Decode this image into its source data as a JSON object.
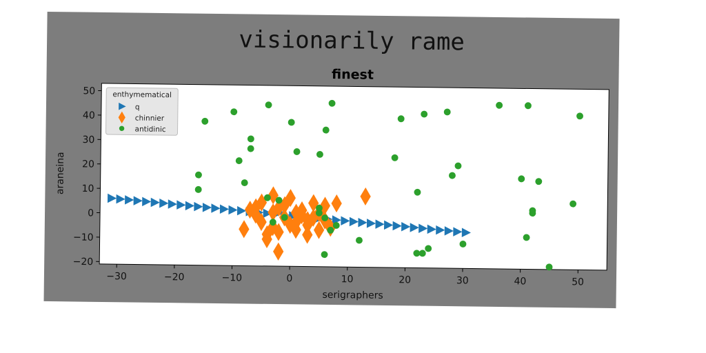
{
  "figure": {
    "suptitle": "visionarily rame"
  },
  "chart_data": {
    "type": "scatter",
    "title": "finest",
    "xlabel": "serigraphers",
    "ylabel": "araneina",
    "xlim": [
      -33,
      55
    ],
    "ylim": [
      -21,
      53
    ],
    "x_ticks": [
      -30,
      -20,
      -10,
      0,
      10,
      20,
      30,
      40,
      50
    ],
    "y_ticks": [
      -20,
      -10,
      0,
      10,
      20,
      30,
      40,
      50
    ],
    "x_tick_labels": [
      "−30",
      "−20",
      "−10",
      "0",
      "10",
      "20",
      "30",
      "40",
      "50"
    ],
    "y_tick_labels": [
      "−20",
      "−10",
      "0",
      "10",
      "20",
      "30",
      "40",
      "50"
    ],
    "grid": false,
    "legend": {
      "title": "enthymematical",
      "placement": "top-left"
    },
    "series": [
      {
        "name": "q",
        "marker": "triangle-right",
        "color": "#1f77b4",
        "points": [
          [
            -31,
            6.0
          ],
          [
            -29.5,
            5.7
          ],
          [
            -28,
            5.4
          ],
          [
            -26.5,
            5.1
          ],
          [
            -25,
            4.8
          ],
          [
            -23.5,
            4.5
          ],
          [
            -22,
            4.2
          ],
          [
            -20.5,
            3.9
          ],
          [
            -19,
            3.6
          ],
          [
            -17.5,
            3.3
          ],
          [
            -16,
            3.0
          ],
          [
            -14.5,
            2.7
          ],
          [
            -13,
            2.4
          ],
          [
            -11.5,
            2.1
          ],
          [
            -10,
            1.8
          ],
          [
            -8.5,
            1.5
          ],
          [
            -7,
            1.2
          ],
          [
            -5.5,
            0.9
          ],
          [
            -4,
            0.6
          ],
          [
            -2.5,
            0.3
          ],
          [
            -1,
            0.0
          ],
          [
            0.5,
            -0.3
          ],
          [
            2,
            -0.6
          ],
          [
            3.5,
            -0.9
          ],
          [
            5,
            -1.2
          ],
          [
            6.5,
            -1.5
          ],
          [
            8,
            -1.8
          ],
          [
            9.5,
            -2.1
          ],
          [
            11,
            -2.4
          ],
          [
            12.5,
            -2.7
          ],
          [
            14,
            -3.0
          ],
          [
            15.5,
            -3.3
          ],
          [
            17,
            -3.6
          ],
          [
            18.5,
            -3.9
          ],
          [
            20,
            -4.2
          ],
          [
            21.5,
            -4.5
          ],
          [
            23,
            -4.8
          ],
          [
            24.5,
            -5.1
          ],
          [
            26,
            -5.4
          ],
          [
            27.5,
            -5.7
          ],
          [
            29,
            -6.0
          ],
          [
            30.5,
            -6.3
          ]
        ]
      },
      {
        "name": "chinnier",
        "marker": "thin-diamond",
        "color": "#ff7f0e",
        "points": [
          [
            -7,
            2
          ],
          [
            -6,
            0
          ],
          [
            -5,
            -3
          ],
          [
            -4,
            -8
          ],
          [
            -3,
            -5
          ],
          [
            -2,
            3
          ],
          [
            -1,
            -1
          ],
          [
            0,
            7
          ],
          [
            1,
            -3
          ],
          [
            2,
            2
          ],
          [
            3,
            -2
          ],
          [
            4,
            5
          ],
          [
            5,
            -6
          ],
          [
            -5,
            5
          ],
          [
            -3,
            1
          ],
          [
            -1,
            4
          ],
          [
            1,
            -6
          ],
          [
            3,
            -8
          ],
          [
            5,
            1
          ],
          [
            6,
            4
          ],
          [
            7,
            -5
          ],
          [
            8,
            5
          ],
          [
            13,
            8
          ],
          [
            -2,
            -15
          ],
          [
            -8,
            -6
          ],
          [
            -4,
            -10
          ],
          [
            0,
            -4
          ],
          [
            2,
            0
          ],
          [
            4,
            -1
          ],
          [
            -6,
            3
          ],
          [
            -3,
            8
          ],
          [
            1,
            1
          ],
          [
            3,
            -4
          ],
          [
            6,
            -2
          ],
          [
            -2,
            -7
          ]
        ]
      },
      {
        "name": "antidinic",
        "marker": "circle",
        "color": "#2ca02c",
        "points": [
          [
            -10,
            42
          ],
          [
            -4,
            45
          ],
          [
            -15,
            38
          ],
          [
            -7,
            31
          ],
          [
            -7,
            27
          ],
          [
            0,
            38
          ],
          [
            1,
            26
          ],
          [
            5,
            25
          ],
          [
            6,
            35
          ],
          [
            7,
            46
          ],
          [
            -9,
            22
          ],
          [
            -16,
            16
          ],
          [
            -16,
            10
          ],
          [
            -8,
            13
          ],
          [
            -4,
            7
          ],
          [
            -3,
            -3
          ],
          [
            -1,
            -1
          ],
          [
            -2,
            6
          ],
          [
            5,
            3
          ],
          [
            7,
            -6
          ],
          [
            8,
            -4
          ],
          [
            6,
            -16
          ],
          [
            12,
            -10
          ],
          [
            19,
            40
          ],
          [
            23,
            42
          ],
          [
            27,
            43
          ],
          [
            36,
            46
          ],
          [
            41,
            46
          ],
          [
            50,
            42
          ],
          [
            18,
            24
          ],
          [
            29,
            21
          ],
          [
            28,
            17
          ],
          [
            22,
            10
          ],
          [
            40,
            16
          ],
          [
            43,
            15
          ],
          [
            42,
            3
          ],
          [
            42,
            2
          ],
          [
            49,
            6
          ],
          [
            41,
            -8
          ],
          [
            30,
            -11
          ],
          [
            24,
            -13
          ],
          [
            23,
            -15
          ],
          [
            22,
            -15
          ],
          [
            45,
            -20
          ],
          [
            6,
            -1
          ],
          [
            5,
            1
          ]
        ]
      }
    ]
  }
}
